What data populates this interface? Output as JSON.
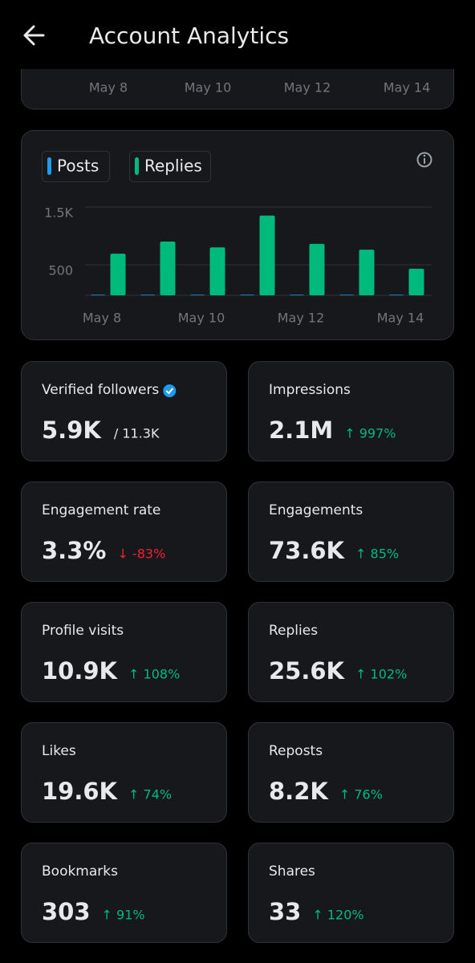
{
  "header": {
    "title": "Account Analytics"
  },
  "previous_chart_axis": [
    "May 8",
    "May 10",
    "May 12",
    "May 14"
  ],
  "chart_data": {
    "type": "bar",
    "categories": [
      "May 8",
      null,
      "May 10",
      null,
      "May 12",
      null,
      "May 14"
    ],
    "series": [
      {
        "name": "Posts",
        "color": "#1d9bf0",
        "values": [
          10,
          10,
          10,
          10,
          10,
          10,
          10
        ]
      },
      {
        "name": "Replies",
        "color": "#00ba7c",
        "values": [
          720,
          930,
          830,
          1380,
          890,
          790,
          460
        ]
      }
    ],
    "ylim": [
      0,
      1500
    ],
    "yticks": [
      500,
      {
        "value": 1500,
        "label": "1.5K"
      }
    ],
    "grid": true
  },
  "stats": [
    {
      "label": "Verified followers",
      "value": "5.9K",
      "total": "/ 11.3K",
      "verified": true
    },
    {
      "label": "Impressions",
      "value": "2.1M",
      "change": "↑ 997%",
      "change_color": "#00ba7c"
    },
    {
      "label": "Engagement rate",
      "value": "3.3%",
      "change": "↓ -83%",
      "change_color": "#f4212e"
    },
    {
      "label": "Engagements",
      "value": "73.6K",
      "change": "↑ 85%",
      "change_color": "#00ba7c"
    },
    {
      "label": "Profile visits",
      "value": "10.9K",
      "change": "↑ 108%",
      "change_color": "#00ba7c"
    },
    {
      "label": "Replies",
      "value": "25.6K",
      "change": "↑ 102%",
      "change_color": "#00ba7c"
    },
    {
      "label": "Likes",
      "value": "19.6K",
      "change": "↑ 74%",
      "change_color": "#00ba7c"
    },
    {
      "label": "Reposts",
      "value": "8.2K",
      "change": "↑ 76%",
      "change_color": "#00ba7c"
    },
    {
      "label": "Bookmarks",
      "value": "303",
      "change": "↑ 91%",
      "change_color": "#00ba7c"
    },
    {
      "label": "Shares",
      "value": "33",
      "change": "↑ 120%",
      "change_color": "#00ba7c"
    }
  ]
}
